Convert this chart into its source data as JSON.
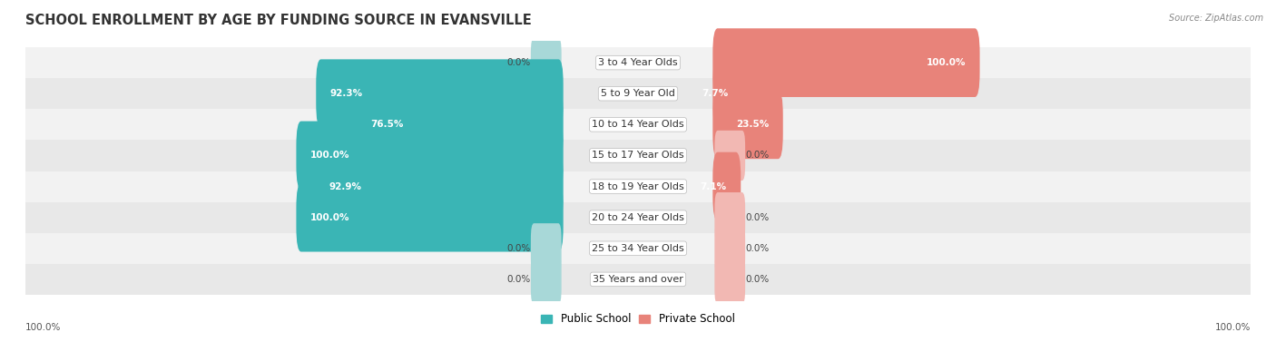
{
  "title": "SCHOOL ENROLLMENT BY AGE BY FUNDING SOURCE IN EVANSVILLE",
  "source": "Source: ZipAtlas.com",
  "categories": [
    "3 to 4 Year Olds",
    "5 to 9 Year Old",
    "10 to 14 Year Olds",
    "15 to 17 Year Olds",
    "18 to 19 Year Olds",
    "20 to 24 Year Olds",
    "25 to 34 Year Olds",
    "35 Years and over"
  ],
  "public_values": [
    0.0,
    92.3,
    76.5,
    100.0,
    92.9,
    100.0,
    0.0,
    0.0
  ],
  "private_values": [
    100.0,
    7.7,
    23.5,
    0.0,
    7.1,
    0.0,
    0.0,
    0.0
  ],
  "public_color": "#3ab5b5",
  "private_color": "#e8837a",
  "public_stub_color": "#a8d8d8",
  "private_stub_color": "#f2b8b3",
  "row_bg_even": "#f2f2f2",
  "row_bg_odd": "#e8e8e8",
  "title_fontsize": 10.5,
  "label_fontsize": 8.0,
  "value_fontsize": 7.5,
  "legend_fontsize": 8.5,
  "footer_fontsize": 7.5
}
